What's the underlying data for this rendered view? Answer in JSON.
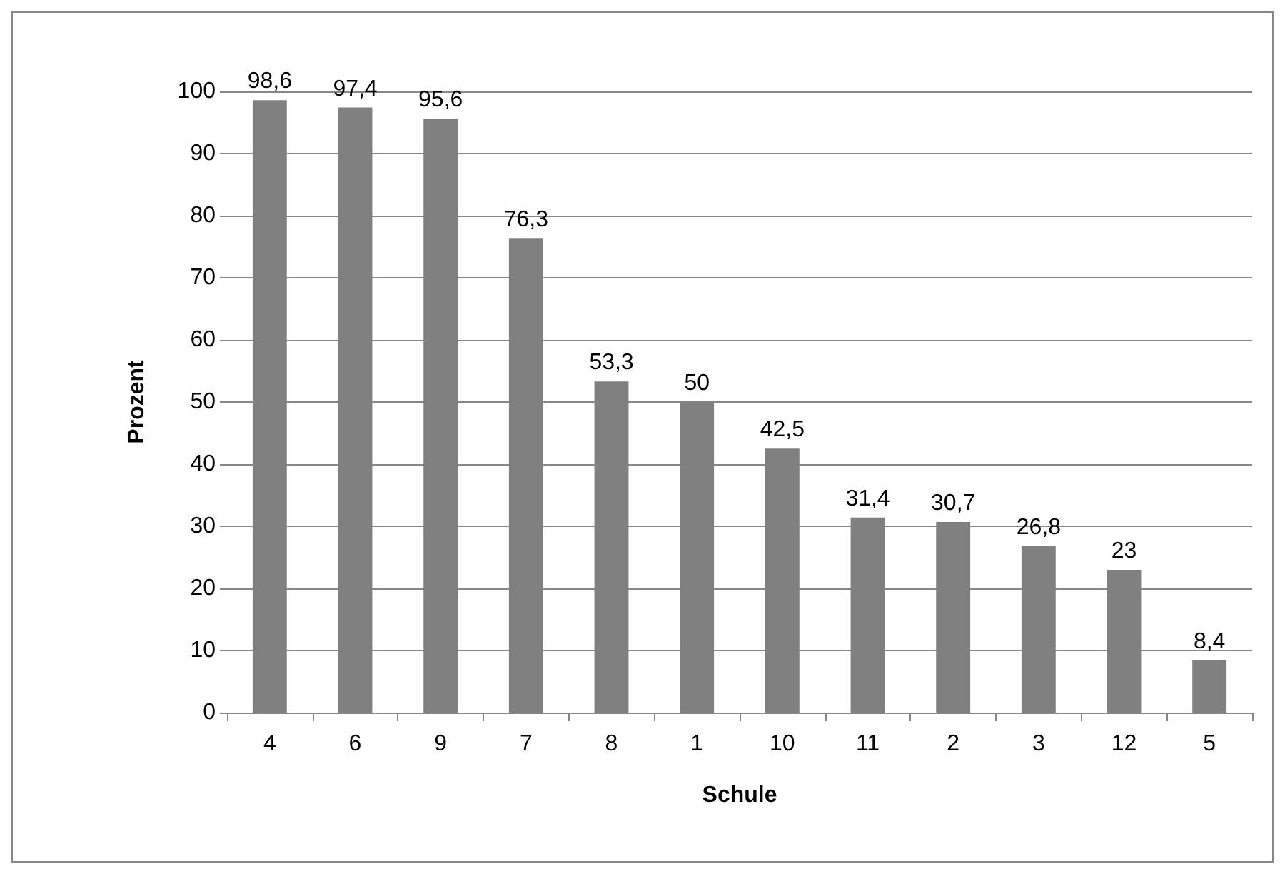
{
  "chart_data": {
    "type": "bar",
    "xlabel": "Schule",
    "ylabel": "Prozent",
    "categories": [
      "4",
      "6",
      "9",
      "7",
      "8",
      "1",
      "10",
      "11",
      "2",
      "3",
      "12",
      "5"
    ],
    "values": [
      98.6,
      97.4,
      95.6,
      76.3,
      53.3,
      50,
      42.5,
      31.4,
      30.7,
      26.8,
      23,
      8.4
    ],
    "value_labels": [
      "98,6",
      "97,4",
      "95,6",
      "76,3",
      "53,3",
      "50",
      "42,5",
      "31,4",
      "30,7",
      "26,8",
      "23",
      "8,4"
    ],
    "color": "#808080",
    "ylim": [
      0,
      100
    ],
    "yticks": [
      0,
      10,
      20,
      30,
      40,
      50,
      60,
      70,
      80,
      90,
      100
    ],
    "grid": "y"
  }
}
